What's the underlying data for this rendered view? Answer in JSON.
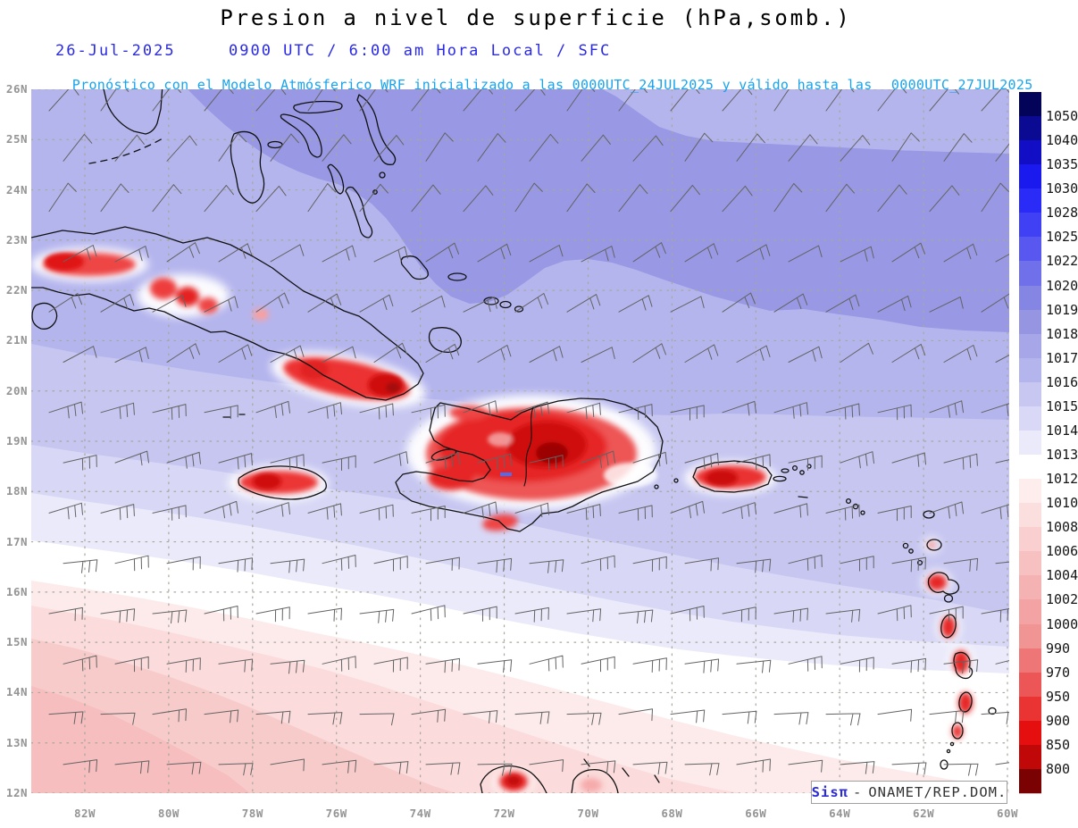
{
  "header": {
    "title": "Presion a nivel de superficie (hPa,somb.)",
    "date": "26-Jul-2025",
    "time_line": "0900 UTC / 6:00 am Hora Local / SFC",
    "forecast_prefix": "Pronóstico con el Modelo Atmósferico WRF inicializado a las 0000UTC_24JUL2025 y válido hasta las",
    "forecast_valid": "0000UTC_27JUL2025",
    "title_color": "#000000",
    "date_color": "#2a2ae4",
    "forecast_color": "#17a4ef"
  },
  "axes": {
    "lat_labels": [
      "26N",
      "25N",
      "24N",
      "23N",
      "22N",
      "21N",
      "20N",
      "19N",
      "18N",
      "17N",
      "16N",
      "15N",
      "14N",
      "13N",
      "12N"
    ],
    "lon_labels": [
      "82W",
      "80W",
      "78W",
      "76W",
      "74W",
      "72W",
      "70W",
      "68W",
      "66W",
      "64W",
      "62W",
      "60W"
    ]
  },
  "colorbar": {
    "unit": "hPa",
    "labels": [
      "1050",
      "1040",
      "1035",
      "1030",
      "1028",
      "1025",
      "1022",
      "1020",
      "1019",
      "1018",
      "1017",
      "1016",
      "1015",
      "1014",
      "1013",
      "1012",
      "1010",
      "1008",
      "1006",
      "1004",
      "1002",
      "1000",
      "990",
      "970",
      "950",
      "900",
      "850",
      "800"
    ],
    "colors": [
      "#03035a",
      "#0a0a93",
      "#120ec6",
      "#1a1aee",
      "#2b2bf8",
      "#4040f4",
      "#5858f0",
      "#7070eb",
      "#8585e3",
      "#9595e2",
      "#a6a6e9",
      "#b5b5ee",
      "#c7c7f2",
      "#d9d9f7",
      "#eaeafb",
      "#ffffff",
      "#fdeded",
      "#fbdede",
      "#f9cfcf",
      "#f7c1c1",
      "#f5b2b2",
      "#f3a3a3",
      "#f19494",
      "#ee7676",
      "#ec5656",
      "#ea3333",
      "#e60f0f",
      "#c10808",
      "#7a0202"
    ]
  },
  "wind": {
    "pattern": "easterly trade wind barbs",
    "speed_range_kt": "5-25"
  },
  "branding": {
    "app": "Sisπ",
    "separator": "-",
    "text": "ONAMET/REP.DOM.",
    "app_color": "#2b2bd8"
  }
}
